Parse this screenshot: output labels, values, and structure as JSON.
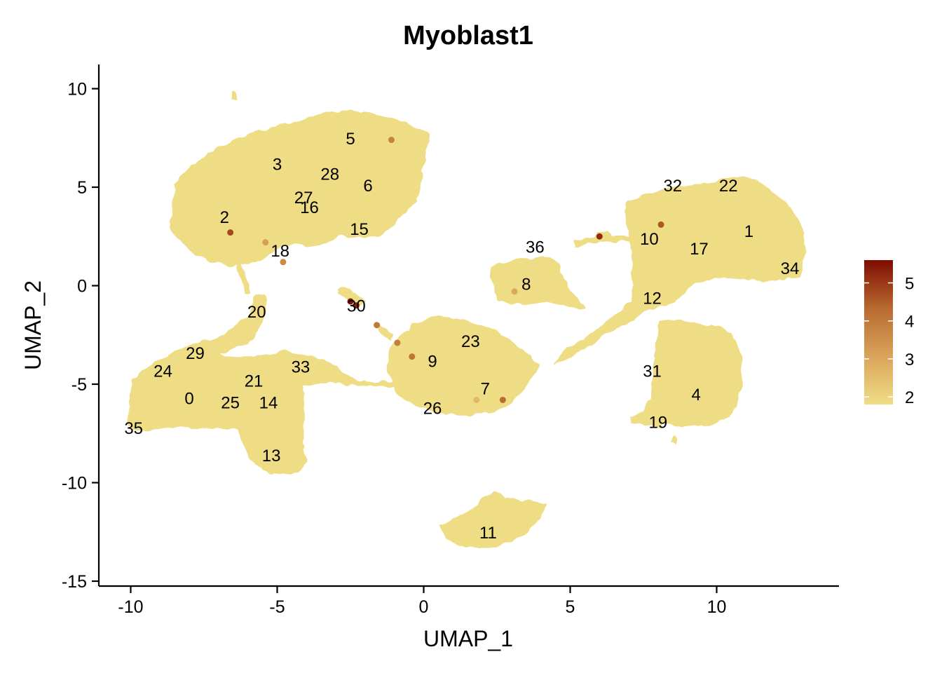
{
  "chart_data": {
    "type": "scatter",
    "title": "Myoblast1",
    "xlabel": "UMAP_1",
    "ylabel": "UMAP_2",
    "xlim": [
      -11,
      14
    ],
    "ylim": [
      -15,
      11
    ],
    "x_ticks": [
      -10,
      -5,
      0,
      5,
      10
    ],
    "y_ticks": [
      10,
      5,
      0,
      -5,
      -10,
      -15
    ],
    "x_tick_labels": [
      "-10",
      "-5",
      "0",
      "5",
      "10"
    ],
    "y_tick_labels": [
      "10",
      "5",
      "0",
      "-5",
      "-10",
      "-15"
    ],
    "grid": false,
    "legend": {
      "position": "right",
      "type": "colorbar",
      "min": 1.8,
      "max": 5.6,
      "ticks": [
        2,
        3,
        4,
        5
      ],
      "tick_labels": [
        "2",
        "3",
        "4",
        "5"
      ],
      "colors": [
        "#efdd86",
        "#d9a45a",
        "#b86a30",
        "#7f0c00"
      ]
    },
    "base_color": "#efdd86",
    "clusters": [
      {
        "label": "0",
        "x": -8.0,
        "y": -5.7
      },
      {
        "label": "1",
        "x": 11.1,
        "y": 2.8
      },
      {
        "label": "2",
        "x": -6.8,
        "y": 3.5
      },
      {
        "label": "3",
        "x": -5.0,
        "y": 6.2
      },
      {
        "label": "4",
        "x": 9.3,
        "y": -5.5
      },
      {
        "label": "5",
        "x": -2.5,
        "y": 7.5
      },
      {
        "label": "6",
        "x": -1.9,
        "y": 5.1
      },
      {
        "label": "7",
        "x": 2.1,
        "y": -5.2
      },
      {
        "label": "8",
        "x": 3.5,
        "y": 0.1
      },
      {
        "label": "9",
        "x": 0.3,
        "y": -3.8
      },
      {
        "label": "10",
        "x": 7.7,
        "y": 2.4
      },
      {
        "label": "11",
        "x": 2.2,
        "y": -12.5
      },
      {
        "label": "12",
        "x": 7.8,
        "y": -0.6
      },
      {
        "label": "13",
        "x": -5.2,
        "y": -8.6
      },
      {
        "label": "14",
        "x": -5.3,
        "y": -5.9
      },
      {
        "label": "15",
        "x": -2.2,
        "y": 2.9
      },
      {
        "label": "16",
        "x": -3.9,
        "y": 4.0
      },
      {
        "label": "17",
        "x": 9.4,
        "y": 1.9
      },
      {
        "label": "18",
        "x": -4.9,
        "y": 1.8
      },
      {
        "label": "19",
        "x": 8.0,
        "y": -6.9
      },
      {
        "label": "20",
        "x": -5.7,
        "y": -1.3
      },
      {
        "label": "21",
        "x": -5.8,
        "y": -4.8
      },
      {
        "label": "22",
        "x": 10.4,
        "y": 5.1
      },
      {
        "label": "23",
        "x": 1.6,
        "y": -2.8
      },
      {
        "label": "24",
        "x": -8.9,
        "y": -4.3
      },
      {
        "label": "25",
        "x": -6.6,
        "y": -5.9
      },
      {
        "label": "26",
        "x": 0.3,
        "y": -6.2
      },
      {
        "label": "27",
        "x": -4.1,
        "y": 4.5
      },
      {
        "label": "28",
        "x": -3.2,
        "y": 5.7
      },
      {
        "label": "29",
        "x": -7.8,
        "y": -3.4
      },
      {
        "label": "30",
        "x": -2.3,
        "y": -1.0
      },
      {
        "label": "31",
        "x": 7.8,
        "y": -4.3
      },
      {
        "label": "32",
        "x": 8.5,
        "y": 5.1
      },
      {
        "label": "33",
        "x": -4.2,
        "y": -4.1
      },
      {
        "label": "34",
        "x": 12.5,
        "y": 0.9
      },
      {
        "label": "35",
        "x": -9.9,
        "y": -7.2
      },
      {
        "label": "36",
        "x": 3.8,
        "y": 2.0
      }
    ],
    "highlighted_points": [
      {
        "x": -1.1,
        "y": 7.4,
        "value": 3.8
      },
      {
        "x": -6.6,
        "y": 2.7,
        "value": 4.8
      },
      {
        "x": -5.4,
        "y": 2.2,
        "value": 3.2
      },
      {
        "x": -4.8,
        "y": 1.2,
        "value": 3.6
      },
      {
        "x": -2.5,
        "y": -0.8,
        "value": 5.5
      },
      {
        "x": -2.3,
        "y": -1.0,
        "value": 5.3
      },
      {
        "x": -1.6,
        "y": -2.0,
        "value": 4.0
      },
      {
        "x": -0.9,
        "y": -2.9,
        "value": 3.9
      },
      {
        "x": -0.4,
        "y": -3.6,
        "value": 4.1
      },
      {
        "x": 2.7,
        "y": -5.8,
        "value": 4.3
      },
      {
        "x": 6.0,
        "y": 2.5,
        "value": 5.2
      },
      {
        "x": 8.1,
        "y": 3.1,
        "value": 4.6
      },
      {
        "x": 3.1,
        "y": -0.3,
        "value": 3.0
      },
      {
        "x": 1.8,
        "y": -5.8,
        "value": 2.6
      }
    ]
  }
}
